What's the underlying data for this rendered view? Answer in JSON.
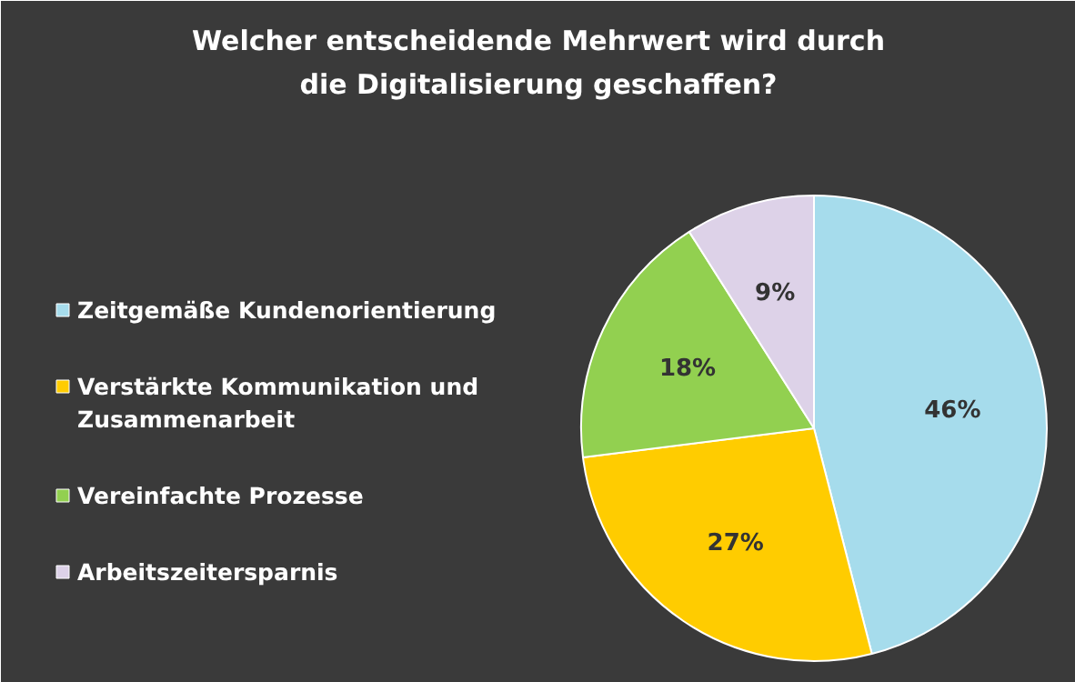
{
  "chart_data": {
    "type": "pie",
    "title": "Welcher entscheidende Mehrwert wird durch die Digitalisierung geschaffen?",
    "categories": [
      "Zeitgemäße Kundenorientierung",
      "Verstärkte Kommunikation und Zusammenarbeit",
      "Vereinfachte Prozesse",
      "Arbeitszeitersparnis"
    ],
    "values": [
      46,
      27,
      18,
      9
    ],
    "colors": [
      "#a6dcec",
      "#ffcc00",
      "#92d050",
      "#ddd2e8"
    ],
    "value_labels": [
      "46%",
      "27%",
      "18%",
      "9%"
    ],
    "legend": "left"
  }
}
